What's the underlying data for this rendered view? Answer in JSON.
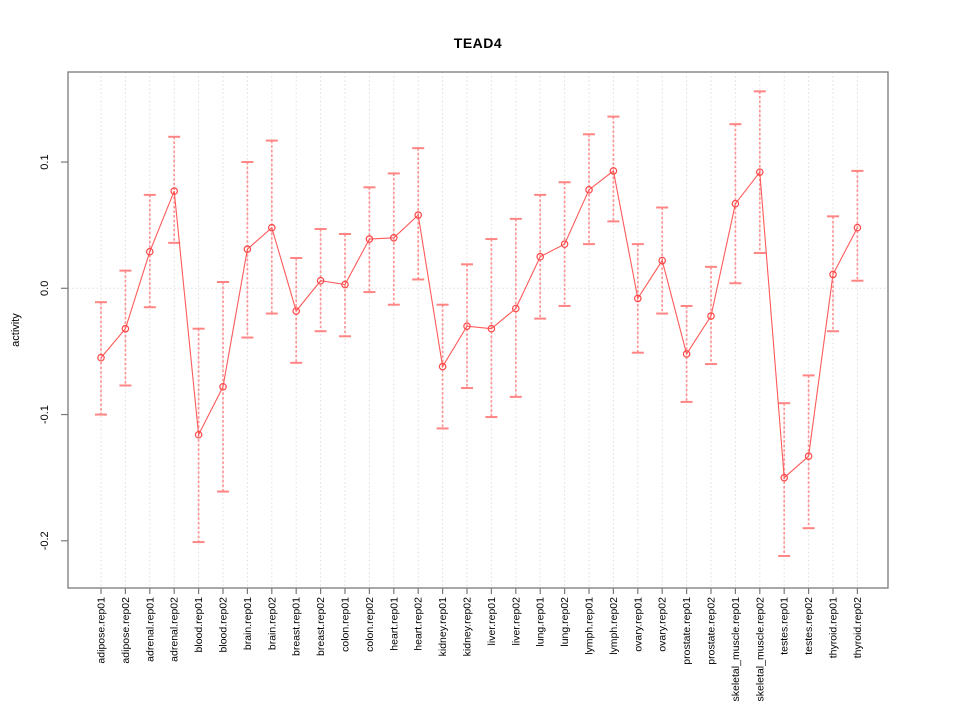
{
  "title": "TEAD4",
  "chart_data": {
    "type": "line",
    "subtype": "point-error-bar-plot",
    "title": "TEAD4",
    "xlabel": "",
    "ylabel": "activity",
    "ylim": [
      -0.237,
      0.171
    ],
    "yticks": [
      0.1,
      0.0,
      -0.1,
      -0.2
    ],
    "ytick_labels": [
      "0.1",
      "0.0",
      "-0.1",
      "-0.2"
    ],
    "grid": "vertical dotted gridline at every category; dotted horizontal reference line at y=0",
    "legend": "none",
    "categories": [
      "adipose.rep01",
      "adipose.rep02",
      "adrenal.rep01",
      "adrenal.rep02",
      "blood.rep01",
      "blood.rep02",
      "brain.rep01",
      "brain.rep02",
      "breast.rep01",
      "breast.rep02",
      "colon.rep01",
      "colon.rep02",
      "heart.rep01",
      "heart.rep02",
      "kidney.rep01",
      "kidney.rep02",
      "liver.rep01",
      "liver.rep02",
      "lung.rep01",
      "lung.rep02",
      "lymph.rep01",
      "lymph.rep02",
      "ovary.rep01",
      "ovary.rep02",
      "prostate.rep01",
      "prostate.rep02",
      "skeletal_muscle.rep01",
      "skeletal_muscle.rep02",
      "testes.rep01",
      "testes.rep02",
      "thyroid.rep01",
      "thyroid.rep02"
    ],
    "series": [
      {
        "name": "activity",
        "values": [
          -0.055,
          -0.032,
          0.029,
          0.077,
          -0.116,
          -0.078,
          0.031,
          0.048,
          -0.018,
          0.006,
          0.003,
          0.039,
          0.04,
          0.058,
          -0.062,
          -0.03,
          -0.032,
          -0.016,
          0.025,
          0.035,
          0.078,
          0.093,
          -0.008,
          0.022,
          -0.052,
          -0.022,
          0.067,
          0.092,
          -0.15,
          -0.133,
          0.011,
          0.048
        ],
        "upper": [
          -0.011,
          0.014,
          0.074,
          0.12,
          -0.032,
          0.005,
          0.1,
          0.117,
          0.024,
          0.047,
          0.043,
          0.08,
          0.091,
          0.111,
          -0.013,
          0.019,
          0.039,
          0.055,
          0.074,
          0.084,
          0.122,
          0.136,
          0.035,
          0.064,
          -0.014,
          0.017,
          0.13,
          0.156,
          -0.091,
          -0.069,
          0.057,
          0.093
        ],
        "lower": [
          -0.1,
          -0.077,
          -0.015,
          0.036,
          -0.201,
          -0.161,
          -0.039,
          -0.02,
          -0.059,
          -0.034,
          -0.038,
          -0.003,
          -0.013,
          0.007,
          -0.111,
          -0.079,
          -0.102,
          -0.086,
          -0.024,
          -0.014,
          0.035,
          0.053,
          -0.051,
          -0.02,
          -0.09,
          -0.06,
          0.004,
          0.028,
          -0.212,
          -0.19,
          -0.034,
          0.006
        ]
      }
    ],
    "marker": "open-circle",
    "colors": {
      "background": "#ffffff",
      "line": "#ff5a5a",
      "marker": "#ff4747",
      "error_bar": "#ff8c8c",
      "error_cap": "#ff8484",
      "grid": "#dedede",
      "frame": "#7a7a7a",
      "text": "#000000"
    }
  }
}
